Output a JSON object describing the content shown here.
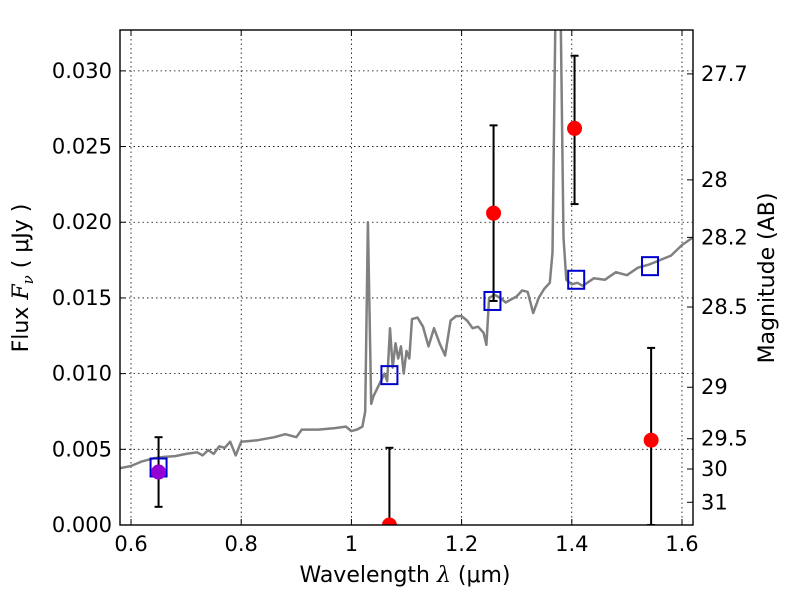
{
  "chart_data": {
    "type": "line",
    "xlabel": {
      "prefix": "Wavelength  ",
      "symbol": "λ",
      "unit": " (μm)"
    },
    "ylabel": {
      "prefix": "Flux  ",
      "symbol": "F",
      "subscript": "ν",
      "unit": "  ( μJy )"
    },
    "y2label": "Magnitude (AB)",
    "xlim": [
      0.58,
      1.62
    ],
    "ylim": [
      0.0,
      0.0327
    ],
    "grid": true,
    "x_ticks": [
      {
        "value": 0.6,
        "label": "0.6"
      },
      {
        "value": 0.8,
        "label": "0.8"
      },
      {
        "value": 1.0,
        "label": "1"
      },
      {
        "value": 1.2,
        "label": "1.2"
      },
      {
        "value": 1.4,
        "label": "1.4"
      },
      {
        "value": 1.6,
        "label": "1.6"
      }
    ],
    "y_ticks": [
      {
        "value": 0.0,
        "label": "0.000"
      },
      {
        "value": 0.005,
        "label": "0.005"
      },
      {
        "value": 0.01,
        "label": "0.010"
      },
      {
        "value": 0.015,
        "label": "0.015"
      },
      {
        "value": 0.02,
        "label": "0.020"
      },
      {
        "value": 0.025,
        "label": "0.025"
      },
      {
        "value": 0.03,
        "label": "0.030"
      }
    ],
    "y2_ticks": [
      {
        "label": "27.7",
        "flux": 0.0298
      },
      {
        "label": "28",
        "flux": 0.0228
      },
      {
        "label": "28.2",
        "flux": 0.019
      },
      {
        "label": "28.5",
        "flux": 0.0144
      },
      {
        "label": "29",
        "flux": 0.0091
      },
      {
        "label": "29.5",
        "flux": 0.0057
      },
      {
        "label": "30",
        "flux": 0.0037
      },
      {
        "label": "31",
        "flux": 0.0015
      }
    ],
    "colors": {
      "model": "#808080",
      "observed": "#ff0000",
      "observed_low": "#9400d3",
      "synthetic": "#0000cd",
      "errorbar": "#000000",
      "grid": "#000000"
    },
    "model_spectrum": [
      [
        0.58,
        0.00375
      ],
      [
        0.6,
        0.0039
      ],
      [
        0.62,
        0.0042
      ],
      [
        0.64,
        0.0044
      ],
      [
        0.66,
        0.0045
      ],
      [
        0.68,
        0.00455
      ],
      [
        0.7,
        0.0047
      ],
      [
        0.72,
        0.0048
      ],
      [
        0.73,
        0.0046
      ],
      [
        0.74,
        0.00495
      ],
      [
        0.75,
        0.0047
      ],
      [
        0.76,
        0.0052
      ],
      [
        0.77,
        0.0051
      ],
      [
        0.78,
        0.0055
      ],
      [
        0.79,
        0.0046
      ],
      [
        0.8,
        0.0055
      ],
      [
        0.83,
        0.0056
      ],
      [
        0.86,
        0.0058
      ],
      [
        0.88,
        0.006
      ],
      [
        0.9,
        0.0058
      ],
      [
        0.91,
        0.0063
      ],
      [
        0.94,
        0.0063
      ],
      [
        0.97,
        0.0064
      ],
      [
        0.99,
        0.0065
      ],
      [
        1.0,
        0.0062
      ],
      [
        1.01,
        0.0063
      ],
      [
        1.02,
        0.0065
      ],
      [
        1.025,
        0.0075
      ],
      [
        1.03,
        0.02
      ],
      [
        1.036,
        0.008
      ],
      [
        1.04,
        0.0085
      ],
      [
        1.06,
        0.01
      ],
      [
        1.065,
        0.0095
      ],
      [
        1.07,
        0.013
      ],
      [
        1.075,
        0.0104
      ],
      [
        1.08,
        0.012
      ],
      [
        1.085,
        0.011
      ],
      [
        1.09,
        0.0118
      ],
      [
        1.095,
        0.01
      ],
      [
        1.1,
        0.0115
      ],
      [
        1.105,
        0.011
      ],
      [
        1.11,
        0.0136
      ],
      [
        1.12,
        0.0137
      ],
      [
        1.13,
        0.0131
      ],
      [
        1.14,
        0.0118
      ],
      [
        1.15,
        0.013
      ],
      [
        1.16,
        0.012
      ],
      [
        1.17,
        0.0112
      ],
      [
        1.18,
        0.0135
      ],
      [
        1.19,
        0.0138
      ],
      [
        1.2,
        0.0138
      ],
      [
        1.21,
        0.0135
      ],
      [
        1.22,
        0.013
      ],
      [
        1.23,
        0.0131
      ],
      [
        1.24,
        0.0127
      ],
      [
        1.245,
        0.0119
      ],
      [
        1.25,
        0.015
      ],
      [
        1.26,
        0.0152
      ],
      [
        1.27,
        0.015
      ],
      [
        1.28,
        0.0147
      ],
      [
        1.3,
        0.0151
      ],
      [
        1.31,
        0.0155
      ],
      [
        1.32,
        0.0154
      ],
      [
        1.33,
        0.014
      ],
      [
        1.34,
        0.015
      ],
      [
        1.35,
        0.0156
      ],
      [
        1.36,
        0.016
      ],
      [
        1.365,
        0.018
      ],
      [
        1.37,
        0.033
      ],
      [
        1.38,
        0.033
      ],
      [
        1.385,
        0.019
      ],
      [
        1.39,
        0.0162
      ],
      [
        1.4,
        0.0159
      ],
      [
        1.41,
        0.016
      ],
      [
        1.42,
        0.0158
      ],
      [
        1.44,
        0.0163
      ],
      [
        1.46,
        0.0162
      ],
      [
        1.48,
        0.0167
      ],
      [
        1.5,
        0.0165
      ],
      [
        1.52,
        0.017
      ],
      [
        1.54,
        0.0172
      ],
      [
        1.56,
        0.0175
      ],
      [
        1.58,
        0.0178
      ],
      [
        1.6,
        0.0185
      ],
      [
        1.62,
        0.019
      ]
    ],
    "synthetic_points": [
      {
        "x": 0.65,
        "y": 0.0038
      },
      {
        "x": 1.069,
        "y": 0.0099
      },
      {
        "x": 1.256,
        "y": 0.0148
      },
      {
        "x": 1.408,
        "y": 0.0162
      },
      {
        "x": 1.542,
        "y": 0.0171
      }
    ],
    "observed_points": [
      {
        "x": 0.65,
        "y": 0.0035,
        "ylow": 0.0012,
        "yhigh": 0.0058,
        "color": "observed_low"
      },
      {
        "x": 1.069,
        "y": 0.0,
        "ylow": 0.0,
        "yhigh": 0.0051,
        "color": "observed"
      },
      {
        "x": 1.258,
        "y": 0.0206,
        "ylow": 0.0148,
        "yhigh": 0.0264,
        "color": "observed"
      },
      {
        "x": 1.405,
        "y": 0.0262,
        "ylow": 0.0212,
        "yhigh": 0.031,
        "color": "observed"
      },
      {
        "x": 1.544,
        "y": 0.0056,
        "ylow": 0.0,
        "yhigh": 0.0117,
        "color": "observed"
      }
    ]
  }
}
